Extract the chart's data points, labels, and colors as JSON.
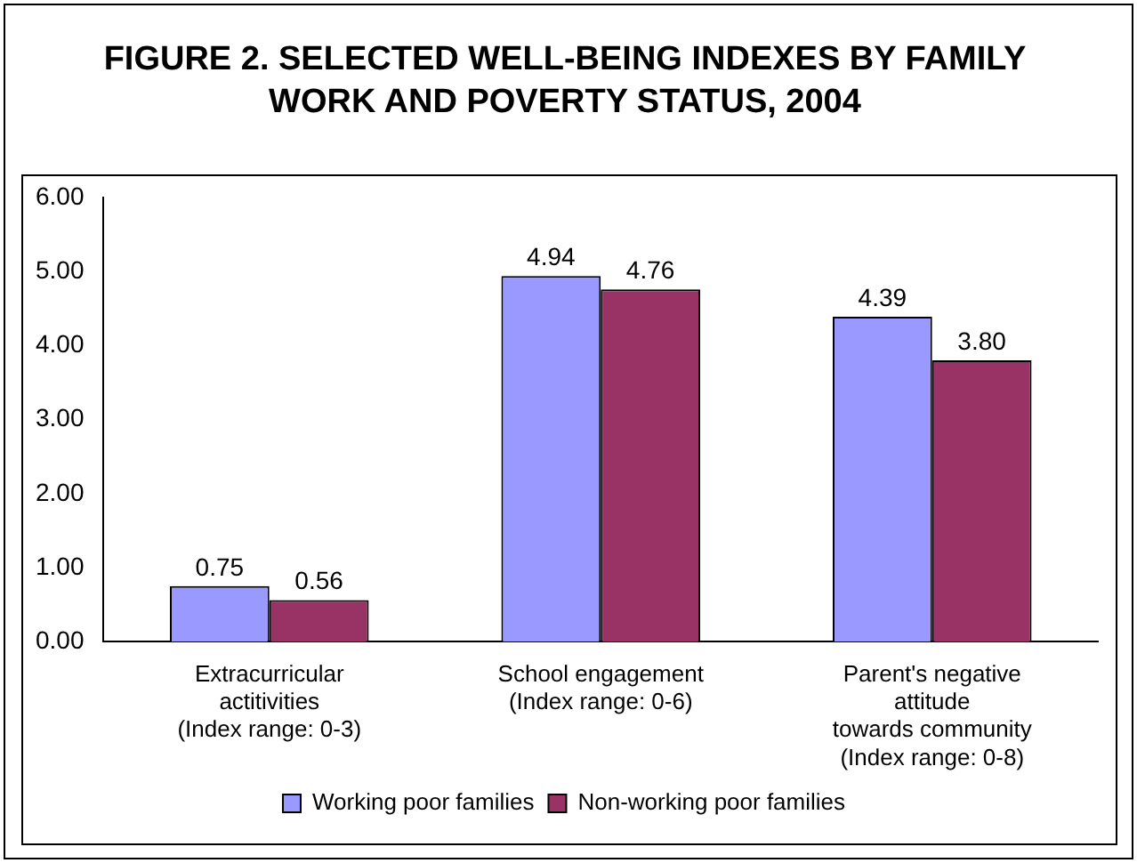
{
  "chart_data": {
    "type": "bar",
    "title": "FIGURE 2. SELECTED WELL-BEING INDEXES BY FAMILY WORK AND POVERTY STATUS, 2004",
    "categories": [
      "Extracurricular\nactitivities\n(Index range: 0-3)",
      "School engagement\n(Index range: 0-6)",
      "Parent's negative\nattitude\ntowards community\n(Index range: 0-8)"
    ],
    "series": [
      {
        "name": "Working poor families",
        "color": "#9999ff",
        "values": [
          0.75,
          4.94,
          4.39
        ],
        "value_labels": [
          "0.75",
          "4.94",
          "4.39"
        ]
      },
      {
        "name": "Non-working poor families",
        "color": "#993366",
        "values": [
          0.56,
          4.76,
          3.8
        ],
        "value_labels": [
          "0.56",
          "4.76",
          "3.80"
        ]
      }
    ],
    "ylim": [
      0,
      6
    ],
    "yticks": [
      {
        "value": 0,
        "label": "0.00"
      },
      {
        "value": 1,
        "label": "1.00"
      },
      {
        "value": 2,
        "label": "2.00"
      },
      {
        "value": 3,
        "label": "3.00"
      },
      {
        "value": 4,
        "label": "4.00"
      },
      {
        "value": 5,
        "label": "5.00"
      },
      {
        "value": 6,
        "label": "6.00"
      }
    ],
    "grid": false,
    "legend": "bottom"
  }
}
